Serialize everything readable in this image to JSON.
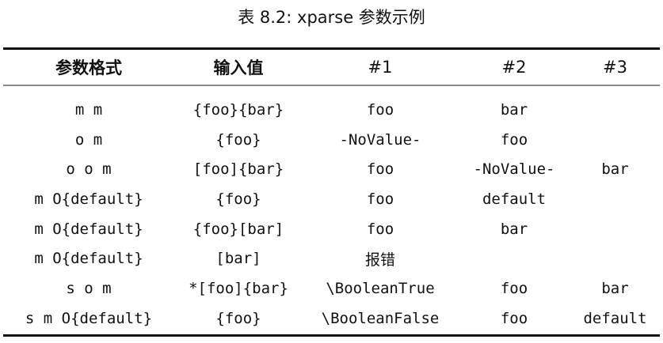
{
  "caption": "表 8.2: xparse 参数示例",
  "headers": [
    "参数格式",
    "输入值",
    "#1",
    "#2",
    "#3"
  ],
  "rows": [
    [
      "m m",
      "{foo}{bar}",
      "foo",
      "bar",
      ""
    ],
    [
      "o m",
      "{foo}",
      "-NoValue-",
      "foo",
      ""
    ],
    [
      "o o m",
      "[foo]{bar}",
      "foo",
      "-NoValue-",
      "bar"
    ],
    [
      "m O{default}",
      "{foo}",
      "foo",
      "default",
      ""
    ],
    [
      "m O{default}",
      "{foo}[bar]",
      "foo",
      "bar",
      ""
    ],
    [
      "m O{default}",
      "[bar]",
      "报错",
      "",
      ""
    ],
    [
      "s o m",
      "*[foo]{bar}",
      "\\BooleanTrue",
      "foo",
      "bar"
    ],
    [
      "s m O{default}",
      "{foo}",
      "\\BooleanFalse",
      "foo",
      "default"
    ]
  ]
}
